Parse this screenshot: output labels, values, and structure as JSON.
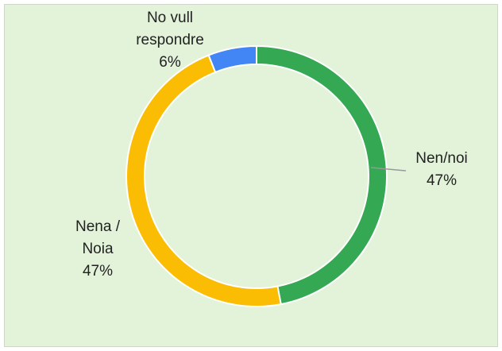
{
  "chart_data": {
    "type": "donut",
    "categories": [
      "Nen/noi",
      "Nena / Noia",
      "No vull respondre"
    ],
    "values": [
      47,
      47,
      6
    ],
    "value_labels": [
      "47%",
      "47%",
      "6%"
    ],
    "colors": [
      "#34a853",
      "#fbbc04",
      "#4285f4"
    ]
  }
}
